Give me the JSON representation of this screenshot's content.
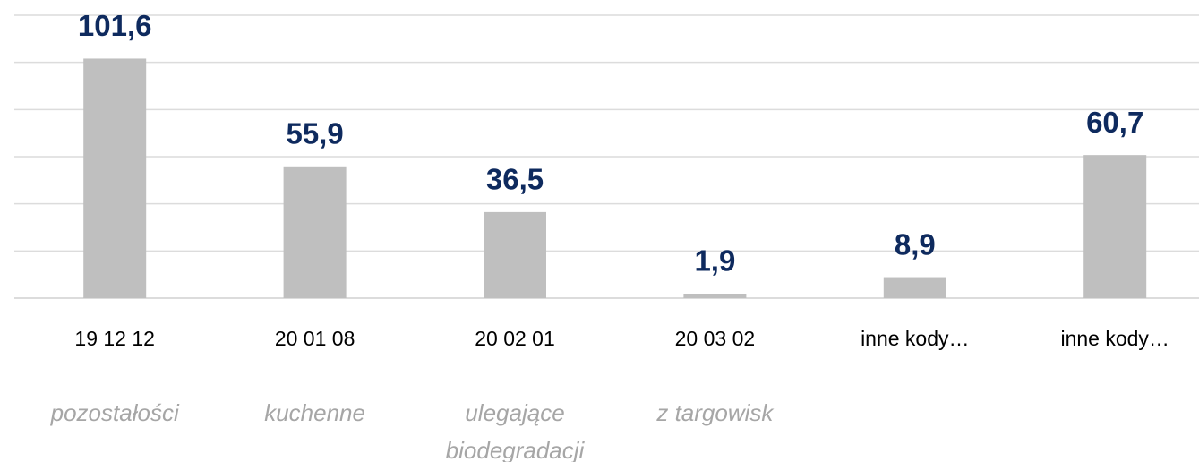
{
  "chart_data": {
    "type": "bar",
    "categories": [
      "19 12 12",
      "20 01 08",
      "20 02 01",
      "20 03 02",
      "inne kody…",
      "inne kody…"
    ],
    "descriptions": [
      "pozostałości",
      "kuchenne",
      "ulegające biodegradacji",
      "z targowisk",
      null,
      null
    ],
    "values": [
      101.6,
      55.9,
      36.5,
      1.9,
      8.9,
      60.7
    ],
    "value_labels": [
      "101,6",
      "55,9",
      "36,5",
      "1,9",
      "8,9",
      "60,7"
    ],
    "color": "#bfbfbf",
    "ylim": [
      0,
      120
    ],
    "yticks": [
      0,
      20,
      40,
      60,
      80,
      100,
      120
    ],
    "grid": true
  }
}
